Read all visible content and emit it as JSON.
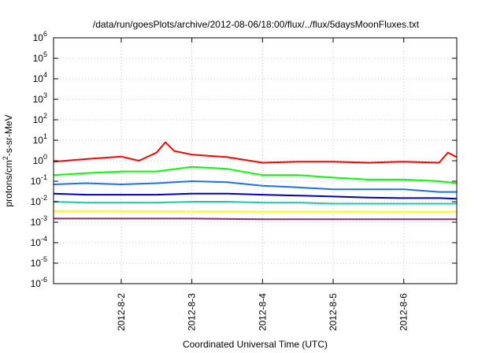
{
  "chart_data": {
    "type": "line",
    "title": "/data/run/goesPlots/archive/2012-08-06/18:00/flux/../flux/5daysMoonFluxes.txt",
    "xlabel": "Coordinated Universal Time (UTC)",
    "ylabel": {
      "base": "protons/cm",
      "sup": "2",
      "rest": "-s-sr-MeV"
    },
    "y_scale": "log",
    "ylim": [
      1e-06,
      1000000.0
    ],
    "y_ticks": [
      {
        "value": 1e-06,
        "base": "10",
        "exp": "-6"
      },
      {
        "value": 1e-05,
        "base": "10",
        "exp": "-5"
      },
      {
        "value": 0.0001,
        "base": "10",
        "exp": "-4"
      },
      {
        "value": 0.001,
        "base": "10",
        "exp": "-3"
      },
      {
        "value": 0.01,
        "base": "10",
        "exp": "-2"
      },
      {
        "value": 0.1,
        "base": "10",
        "exp": "-1"
      },
      {
        "value": 1.0,
        "base": "10",
        "exp": "0"
      },
      {
        "value": 10.0,
        "base": "10",
        "exp": "1"
      },
      {
        "value": 100.0,
        "base": "10",
        "exp": "2"
      },
      {
        "value": 1000.0,
        "base": "10",
        "exp": "3"
      },
      {
        "value": 10000.0,
        "base": "10",
        "exp": "4"
      },
      {
        "value": 100000.0,
        "base": "10",
        "exp": "5"
      },
      {
        "value": 1000000.0,
        "base": "10",
        "exp": "6"
      }
    ],
    "xlim": [
      "2012-08-01T01:00",
      "2012-08-06T18:00"
    ],
    "x_ticks": [
      "2012-8-2",
      "2012-8-3",
      "2012-8-4",
      "2012-8-5",
      "2012-8-6"
    ],
    "grid": true,
    "series": [
      {
        "color": "#ff0000",
        "x": [
          "2012-08-01T01:00",
          "2012-08-01T12:00",
          "2012-08-02T00:00",
          "2012-08-02T06:00",
          "2012-08-02T12:00",
          "2012-08-02T15:00",
          "2012-08-02T18:00",
          "2012-08-03T00:00",
          "2012-08-03T12:00",
          "2012-08-04T00:00",
          "2012-08-04T12:00",
          "2012-08-05T00:00",
          "2012-08-05T12:00",
          "2012-08-06T00:00",
          "2012-08-06T12:00",
          "2012-08-06T15:00",
          "2012-08-06T18:00"
        ],
        "values": [
          0.9,
          1.2,
          1.6,
          1.0,
          2.5,
          8.0,
          3.0,
          2.0,
          1.5,
          0.8,
          0.9,
          0.9,
          0.8,
          0.9,
          0.8,
          2.5,
          1.5
        ]
      },
      {
        "color": "#00ff00",
        "x": [
          "2012-08-01T01:00",
          "2012-08-01T12:00",
          "2012-08-02T00:00",
          "2012-08-02T12:00",
          "2012-08-03T00:00",
          "2012-08-03T12:00",
          "2012-08-04T00:00",
          "2012-08-04T12:00",
          "2012-08-05T00:00",
          "2012-08-05T12:00",
          "2012-08-06T00:00",
          "2012-08-06T12:00",
          "2012-08-06T18:00"
        ],
        "values": [
          0.2,
          0.25,
          0.3,
          0.3,
          0.5,
          0.4,
          0.2,
          0.2,
          0.15,
          0.12,
          0.12,
          0.1,
          0.08
        ]
      },
      {
        "color": "#1e6ef0",
        "x": [
          "2012-08-01T01:00",
          "2012-08-01T12:00",
          "2012-08-02T00:00",
          "2012-08-02T12:00",
          "2012-08-03T00:00",
          "2012-08-03T12:00",
          "2012-08-04T00:00",
          "2012-08-04T12:00",
          "2012-08-05T00:00",
          "2012-08-05T12:00",
          "2012-08-06T00:00",
          "2012-08-06T12:00",
          "2012-08-06T18:00"
        ],
        "values": [
          0.07,
          0.08,
          0.07,
          0.08,
          0.1,
          0.09,
          0.06,
          0.05,
          0.04,
          0.04,
          0.04,
          0.03,
          0.03
        ]
      },
      {
        "color": "#0000b8",
        "x": [
          "2012-08-01T01:00",
          "2012-08-01T12:00",
          "2012-08-02T00:00",
          "2012-08-02T12:00",
          "2012-08-03T00:00",
          "2012-08-03T12:00",
          "2012-08-04T00:00",
          "2012-08-04T12:00",
          "2012-08-05T00:00",
          "2012-08-05T12:00",
          "2012-08-06T00:00",
          "2012-08-06T12:00",
          "2012-08-06T18:00"
        ],
        "values": [
          0.025,
          0.022,
          0.022,
          0.022,
          0.025,
          0.025,
          0.022,
          0.02,
          0.018,
          0.016,
          0.015,
          0.015,
          0.014
        ]
      },
      {
        "color": "#20c8a0",
        "x": [
          "2012-08-01T01:00",
          "2012-08-01T12:00",
          "2012-08-02T00:00",
          "2012-08-02T12:00",
          "2012-08-03T00:00",
          "2012-08-03T12:00",
          "2012-08-04T00:00",
          "2012-08-04T12:00",
          "2012-08-05T00:00",
          "2012-08-05T12:00",
          "2012-08-06T00:00",
          "2012-08-06T12:00",
          "2012-08-06T18:00"
        ],
        "values": [
          0.01,
          0.009,
          0.009,
          0.009,
          0.01,
          0.01,
          0.009,
          0.009,
          0.008,
          0.008,
          0.008,
          0.008,
          0.008
        ]
      },
      {
        "color": "#ffff00",
        "x": [
          "2012-08-01T01:00",
          "2012-08-02T00:00",
          "2012-08-03T00:00",
          "2012-08-04T00:00",
          "2012-08-05T00:00",
          "2012-08-06T00:00",
          "2012-08-06T18:00"
        ],
        "values": [
          0.0035,
          0.0035,
          0.0034,
          0.0033,
          0.0033,
          0.0032,
          0.0032
        ]
      },
      {
        "color": "#8b2a6e",
        "x": [
          "2012-08-01T01:00",
          "2012-08-02T00:00",
          "2012-08-03T00:00",
          "2012-08-04T00:00",
          "2012-08-05T00:00",
          "2012-08-06T00:00",
          "2012-08-06T18:00"
        ],
        "values": [
          0.0015,
          0.0015,
          0.0015,
          0.0014,
          0.0014,
          0.0014,
          0.0014
        ]
      }
    ]
  }
}
